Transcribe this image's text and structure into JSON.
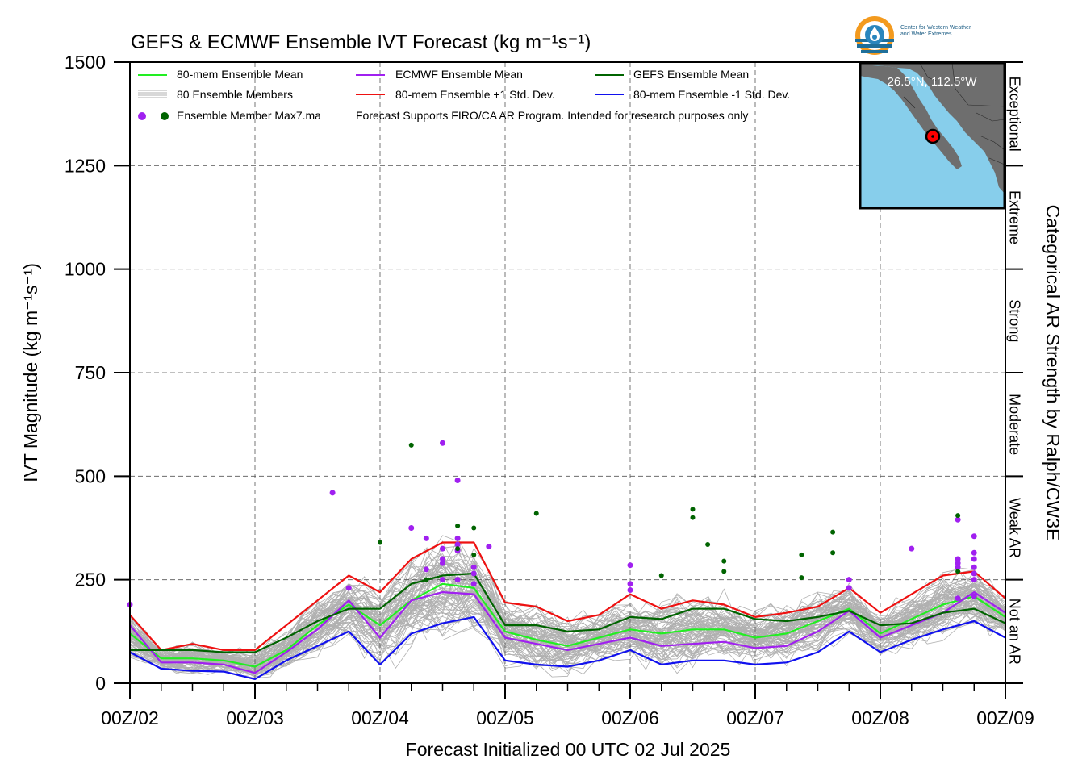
{
  "title": "GEFS & ECMWF Ensemble IVT Forecast (kg m⁻¹s⁻¹)",
  "logo": {
    "line1": "Center for Western Weather",
    "line2": "and Water Extremes"
  },
  "inset": {
    "location": "26.5°N, 112.5°W"
  },
  "legend": {
    "ens_mean": "80-mem Ensemble Mean",
    "ecmwf_mean": "ECMWF Ensemble Mean",
    "gefs_mean": "GEFS Ensemble Mean",
    "members": "80 Ensemble Members",
    "plus_std": "80-mem Ensemble +1 Std. Dev.",
    "minus_std": "80-mem Ensemble -1 Std. Dev.",
    "max_label": "Ensemble Member Max7.ma",
    "note": "Forecast Supports FIRO/CA AR Program. Intended for research purposes only"
  },
  "colors": {
    "ens_mean": "#22ee22",
    "ecmwf_mean": "#a020f0",
    "gefs_mean": "#006400",
    "plus_std": "#ee1111",
    "minus_std": "#1111ee",
    "members": "#b0b0b0",
    "ocean": "#87ceeb",
    "land": "#6e6e6e"
  },
  "chart_data": {
    "type": "line",
    "title": "GEFS & ECMWF Ensemble IVT Forecast (kg m⁻¹s⁻¹)",
    "xlabel": "Forecast Initialized 00 UTC 02 Jul 2025",
    "ylabel": "IVT Magnitude (kg m⁻¹s⁻¹)",
    "right_label": "Categorical AR Strength by Ralph/CW3E",
    "x_ticks": [
      "00Z/02",
      "00Z/03",
      "00Z/04",
      "00Z/05",
      "00Z/06",
      "00Z/07",
      "00Z/08",
      "00Z/09"
    ],
    "y_ticks": [
      0,
      250,
      500,
      750,
      1000,
      1250,
      1500
    ],
    "ylim": [
      0,
      1500
    ],
    "xlim_days": [
      0,
      7
    ],
    "grid": true,
    "legend_position": "top-left",
    "categories": [
      {
        "label": "Not an AR",
        "range": [
          0,
          250
        ]
      },
      {
        "label": "Weak AR",
        "range": [
          250,
          500
        ]
      },
      {
        "label": "Moderate",
        "range": [
          500,
          750
        ]
      },
      {
        "label": "Strong",
        "range": [
          750,
          1000
        ]
      },
      {
        "label": "Extreme",
        "range": [
          1000,
          1250
        ]
      },
      {
        "label": "Exceptional",
        "range": [
          1250,
          1500
        ]
      }
    ],
    "series": [
      {
        "name": "80-mem Ensemble Mean",
        "color": "#22ee22",
        "x": [
          0,
          0.25,
          0.5,
          0.75,
          1,
          1.25,
          1.5,
          1.75,
          2,
          2.25,
          2.5,
          2.75,
          3,
          3.25,
          3.5,
          3.75,
          4,
          4.25,
          4.5,
          4.75,
          5,
          5.25,
          5.5,
          5.75,
          6,
          6.25,
          6.5,
          6.75,
          7
        ],
        "values": [
          120,
          60,
          60,
          55,
          40,
          80,
          140,
          190,
          140,
          200,
          240,
          230,
          125,
          105,
          90,
          110,
          130,
          120,
          130,
          130,
          110,
          120,
          150,
          180,
          120,
          155,
          190,
          210,
          160
        ]
      },
      {
        "name": "ECMWF Ensemble Mean",
        "color": "#a020f0",
        "x": [
          0,
          0.25,
          0.5,
          0.75,
          1,
          1.25,
          1.5,
          1.75,
          2,
          2.25,
          2.5,
          2.75,
          3,
          3.25,
          3.5,
          3.75,
          4,
          4.25,
          4.5,
          4.75,
          5,
          5.25,
          5.5,
          5.75,
          6,
          6.25,
          6.5,
          6.75,
          7
        ],
        "values": [
          140,
          50,
          50,
          45,
          25,
          75,
          130,
          200,
          110,
          200,
          220,
          215,
          110,
          95,
          80,
          95,
          110,
          90,
          95,
          100,
          85,
          90,
          125,
          175,
          110,
          140,
          170,
          220,
          170
        ]
      },
      {
        "name": "GEFS Ensemble Mean",
        "color": "#006400",
        "x": [
          0,
          0.25,
          0.5,
          0.75,
          1,
          1.25,
          1.5,
          1.75,
          2,
          2.25,
          2.5,
          2.75,
          3,
          3.25,
          3.5,
          3.75,
          4,
          4.25,
          4.5,
          4.75,
          5,
          5.25,
          5.5,
          5.75,
          6,
          6.25,
          6.5,
          6.75,
          7
        ],
        "values": [
          80,
          80,
          80,
          75,
          75,
          110,
          150,
          180,
          180,
          240,
          260,
          265,
          140,
          140,
          125,
          130,
          160,
          155,
          180,
          180,
          155,
          150,
          160,
          175,
          140,
          145,
          170,
          180,
          145
        ]
      },
      {
        "name": "80-mem Ensemble +1 Std. Dev.",
        "color": "#ee1111",
        "x": [
          0,
          0.25,
          0.5,
          0.75,
          1,
          1.25,
          1.5,
          1.75,
          2,
          2.25,
          2.5,
          2.75,
          3,
          3.25,
          3.5,
          3.75,
          4,
          4.25,
          4.5,
          4.75,
          5,
          5.25,
          5.5,
          5.75,
          6,
          6.25,
          6.5,
          6.75,
          7
        ],
        "values": [
          165,
          80,
          95,
          80,
          80,
          140,
          200,
          260,
          220,
          300,
          340,
          340,
          195,
          185,
          150,
          165,
          215,
          180,
          200,
          190,
          160,
          170,
          185,
          230,
          170,
          215,
          260,
          270,
          205
        ]
      },
      {
        "name": "80-mem Ensemble -1 Std. Dev.",
        "color": "#1111ee",
        "x": [
          0,
          0.25,
          0.5,
          0.75,
          1,
          1.25,
          1.5,
          1.75,
          2,
          2.25,
          2.5,
          2.75,
          3,
          3.25,
          3.5,
          3.75,
          4,
          4.25,
          4.5,
          4.75,
          5,
          5.25,
          5.5,
          5.75,
          6,
          6.25,
          6.5,
          6.75,
          7
        ],
        "values": [
          75,
          35,
          30,
          28,
          10,
          55,
          90,
          125,
          45,
          120,
          145,
          160,
          55,
          45,
          40,
          55,
          80,
          45,
          55,
          55,
          45,
          50,
          75,
          125,
          75,
          105,
          130,
          150,
          110
        ]
      }
    ],
    "ecmwf_max_points": [
      {
        "x": 0,
        "y": 190
      },
      {
        "x": 1.62,
        "y": 460
      },
      {
        "x": 1.75,
        "y": 230
      },
      {
        "x": 2.25,
        "y": 375
      },
      {
        "x": 2.37,
        "y": 350
      },
      {
        "x": 2.37,
        "y": 275
      },
      {
        "x": 2.5,
        "y": 580
      },
      {
        "x": 2.5,
        "y": 325
      },
      {
        "x": 2.5,
        "y": 300
      },
      {
        "x": 2.5,
        "y": 290
      },
      {
        "x": 2.5,
        "y": 250
      },
      {
        "x": 2.62,
        "y": 490
      },
      {
        "x": 2.62,
        "y": 350
      },
      {
        "x": 2.62,
        "y": 335
      },
      {
        "x": 2.62,
        "y": 320
      },
      {
        "x": 2.62,
        "y": 250
      },
      {
        "x": 2.75,
        "y": 280
      },
      {
        "x": 2.75,
        "y": 265
      },
      {
        "x": 2.75,
        "y": 240
      },
      {
        "x": 2.87,
        "y": 330
      },
      {
        "x": 4,
        "y": 285
      },
      {
        "x": 4,
        "y": 240
      },
      {
        "x": 4,
        "y": 225
      },
      {
        "x": 5.75,
        "y": 250
      },
      {
        "x": 5.75,
        "y": 230
      },
      {
        "x": 6.25,
        "y": 325
      },
      {
        "x": 6.62,
        "y": 395
      },
      {
        "x": 6.62,
        "y": 300
      },
      {
        "x": 6.62,
        "y": 290
      },
      {
        "x": 6.62,
        "y": 280
      },
      {
        "x": 6.62,
        "y": 205
      },
      {
        "x": 6.75,
        "y": 355
      },
      {
        "x": 6.75,
        "y": 315
      },
      {
        "x": 6.75,
        "y": 300
      },
      {
        "x": 6.75,
        "y": 280
      },
      {
        "x": 6.75,
        "y": 265
      },
      {
        "x": 6.75,
        "y": 250
      },
      {
        "x": 6.75,
        "y": 210
      }
    ],
    "gefs_max_points": [
      {
        "x": 2,
        "y": 340
      },
      {
        "x": 2.25,
        "y": 575
      },
      {
        "x": 2.37,
        "y": 250
      },
      {
        "x": 2.62,
        "y": 380
      },
      {
        "x": 2.62,
        "y": 325
      },
      {
        "x": 2.75,
        "y": 375
      },
      {
        "x": 2.75,
        "y": 310
      },
      {
        "x": 3.25,
        "y": 410
      },
      {
        "x": 4.25,
        "y": 260
      },
      {
        "x": 4.5,
        "y": 420
      },
      {
        "x": 4.5,
        "y": 400
      },
      {
        "x": 4.62,
        "y": 335
      },
      {
        "x": 4.75,
        "y": 295
      },
      {
        "x": 4.75,
        "y": 270
      },
      {
        "x": 5.37,
        "y": 310
      },
      {
        "x": 5.37,
        "y": 255
      },
      {
        "x": 5.62,
        "y": 365
      },
      {
        "x": 5.62,
        "y": 315
      },
      {
        "x": 6.62,
        "y": 270
      },
      {
        "x": 6.62,
        "y": 405
      }
    ],
    "members_count": 80
  }
}
